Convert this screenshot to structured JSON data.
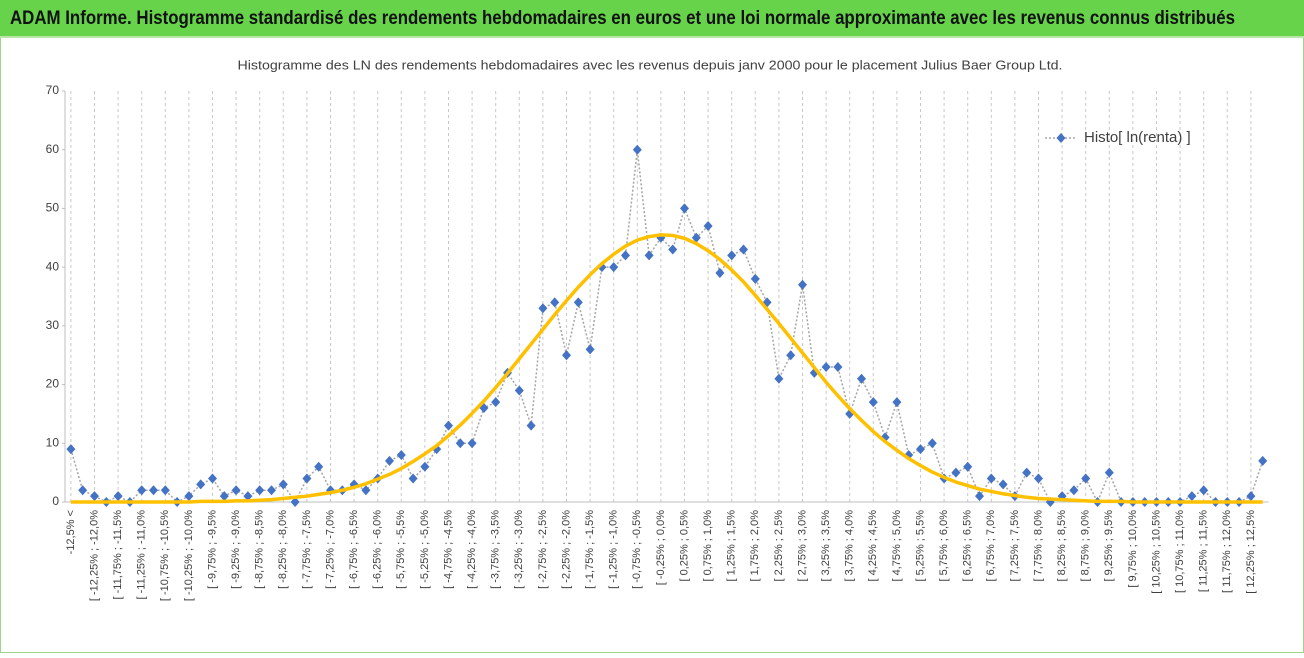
{
  "header": {
    "title": "ADAM Informe. Histogramme standardisé des rendements hebdomadaires en euros et une loi normale approximante avec les revenus connus distribués"
  },
  "chart_data": {
    "type": "line",
    "title": "Histogramme des LN des rendements hebdomadaires avec les revenus depuis janv 2000 pour le placement Julius Baer Group Ltd.",
    "categories": [
      "-12,5% <",
      null,
      "[ -12,25% ; -12,0%",
      null,
      "[ -11,75% ; -11,5%",
      null,
      "[ -11,25% ; -11,0%",
      null,
      "[ -10,75% ; -10,5%",
      null,
      "[ -10,25% ; -10,0%",
      null,
      "[ -9,75% ; -9,5%",
      null,
      "[ -9,25% ; -9,0%",
      null,
      "[ -8,75% ; -8,5%",
      null,
      "[ -8,25% ; -8,0%",
      null,
      "[ -7,75% ; -7,5%",
      null,
      "[ -7,25% ; -7,0%",
      null,
      "[ -6,75% ; -6,5%",
      null,
      "[ -6,25% ; -6,0%",
      null,
      "[ -5,75% ; -5,5%",
      null,
      "[ -5,25% ; -5,0%",
      null,
      "[ -4,75% ; -4,5%",
      null,
      "[ -4,25% ; -4,0%",
      null,
      "[ -3,75% ; -3,5%",
      null,
      "[ -3,25% ; -3,0%",
      null,
      "[ -2,75% ; -2,5%",
      null,
      "[ -2,25% ; -2,0%",
      null,
      "[ -1,75% ; -1,5%",
      null,
      "[ -1,25% ; -1,0%",
      null,
      "[ -0,75% ; -0,5%",
      null,
      "[ -0,25% ; 0,0%",
      null,
      "[ 0,25% ; 0,5%",
      null,
      "[ 0,75% ; 1,0%",
      null,
      "[ 1,25% ; 1,5%",
      null,
      "[ 1,75% ; 2,0%",
      null,
      "[ 2,25% ; 2,5%",
      null,
      "[ 2,75% ; 3,0%",
      null,
      "[ 3,25% ; 3,5%",
      null,
      "[ 3,75% ; 4,0%",
      null,
      "[ 4,25% ; 4,5%",
      null,
      "[ 4,75% ; 5,0%",
      null,
      "[ 5,25% ; 5,5%",
      null,
      "[ 5,75% ; 6,0%",
      null,
      "[ 6,25% ; 6,5%",
      null,
      "[ 6,75% ; 7,0%",
      null,
      "[ 7,25% ; 7,5%",
      null,
      "[ 7,75% ; 8,0%",
      null,
      "[ 8,25% ; 8,5%",
      null,
      "[ 8,75% ; 9,0%",
      null,
      "[ 9,25% ; 9,5%",
      null,
      "[ 9,75% ; 10,0%",
      null,
      "[ 10,25% ; 10,5%",
      null,
      "[ 10,75% ; 11,0%",
      null,
      "[ 11,25% ; 11,5%",
      null,
      "[ 11,75% ; 12,0%",
      null,
      "[ 12,25% ; 12,5%",
      null
    ],
    "series": [
      {
        "name": "Histo[ ln(renta) ]",
        "color": "#4472c4",
        "line_color": "#a5a5a5",
        "values": [
          9,
          2,
          1,
          0,
          1,
          0,
          2,
          2,
          2,
          0,
          1,
          3,
          4,
          1,
          2,
          1,
          2,
          2,
          3,
          0,
          4,
          6,
          2,
          2,
          3,
          2,
          4,
          7,
          8,
          4,
          6,
          9,
          13,
          10,
          10,
          16,
          17,
          22,
          19,
          13,
          33,
          34,
          25,
          34,
          26,
          40,
          40,
          42,
          60,
          42,
          45,
          43,
          50,
          45,
          47,
          39,
          42,
          43,
          38,
          34,
          21,
          25,
          37,
          22,
          23,
          23,
          15,
          21,
          17,
          11,
          17,
          8,
          9,
          10,
          4,
          5,
          6,
          1,
          4,
          3,
          1,
          5,
          4,
          0,
          1,
          2,
          4,
          0,
          5,
          0,
          0,
          0,
          0,
          0,
          0,
          1,
          2,
          0,
          0,
          0,
          1,
          7
        ]
      },
      {
        "color": "#ffc000",
        "values": [
          0,
          0,
          0,
          0,
          0,
          0,
          0,
          0,
          0,
          0,
          0,
          0.1,
          0.1,
          0.1,
          0.2,
          0.2,
          0.3,
          0.4,
          0.6,
          0.8,
          1.0,
          1.3,
          1.6,
          2.0,
          2.5,
          3.1,
          3.9,
          4.7,
          5.7,
          6.9,
          8.2,
          9.6,
          11.3,
          13.1,
          15.1,
          17.2,
          19.5,
          21.9,
          24.4,
          26.9,
          29.4,
          31.9,
          34.3,
          36.6,
          38.7,
          40.6,
          42.2,
          43.6,
          44.6,
          45.2,
          45.5,
          45.4,
          44.9,
          44.0,
          42.8,
          41.3,
          39.5,
          37.5,
          35.2,
          32.8,
          30.4,
          27.9,
          25.4,
          22.9,
          20.4,
          18.1,
          15.9,
          13.9,
          12.0,
          10.3,
          8.8,
          7.4,
          6.2,
          5.1,
          4.2,
          3.4,
          2.8,
          2.2,
          1.8,
          1.4,
          1.1,
          0.8,
          0.6,
          0.5,
          0.4,
          0.3,
          0.2,
          0.1,
          0.1,
          0.1,
          0,
          0,
          0,
          0,
          0,
          0,
          0,
          0,
          0,
          0,
          0,
          0
        ]
      }
    ],
    "ylim": [
      0,
      70
    ],
    "yticks": [
      0,
      10,
      20,
      30,
      40,
      50,
      60,
      70
    ],
    "x_grid": true,
    "legend": "top-right"
  }
}
